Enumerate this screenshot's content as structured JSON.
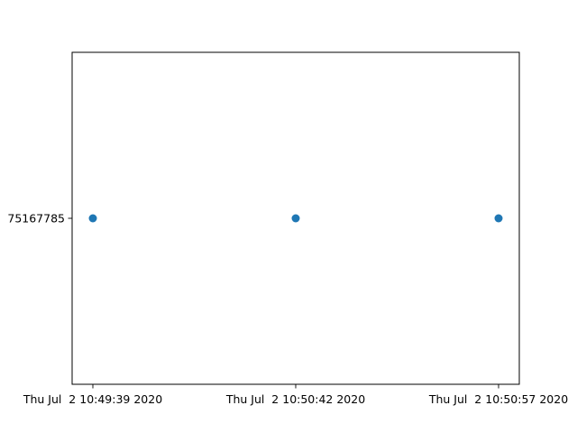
{
  "chart_data": {
    "type": "scatter",
    "x_tick_labels": [
      "Thu Jul  2 10:49:39 2020",
      "Thu Jul  2 10:50:42 2020",
      "Thu Jul  2 10:50:57 2020"
    ],
    "y_tick_labels": [
      "75167785"
    ],
    "points": [
      {
        "x": "Thu Jul  2 10:49:39 2020",
        "y": 75167785
      },
      {
        "x": "Thu Jul  2 10:50:42 2020",
        "y": 75167785
      },
      {
        "x": "Thu Jul  2 10:50:57 2020",
        "y": 75167785
      }
    ],
    "marker_color": "#1f77b4",
    "grid": false,
    "legend": "none"
  }
}
